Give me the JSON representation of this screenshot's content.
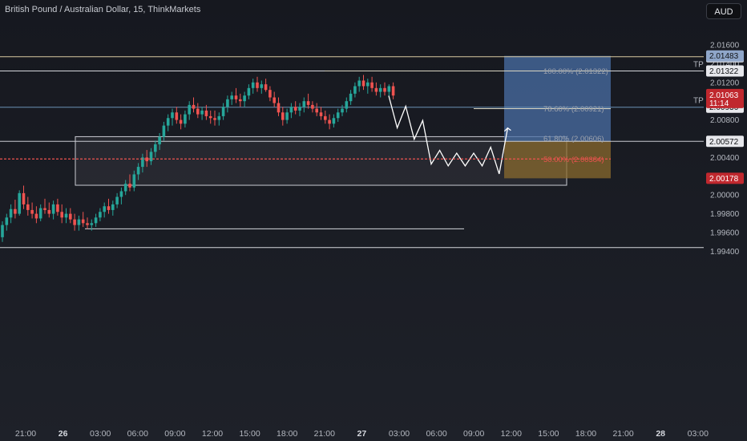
{
  "header": {
    "title": "British Pound / Australian Dollar, 15, ThinkMarkets",
    "currency_label": "AUD"
  },
  "colors": {
    "up": "#26a69a",
    "down": "#ef5350",
    "fib_line": "#d9d5c2",
    "target_zone": "#4a6fa5",
    "stop_zone": "#8a6a2e",
    "current_price_badge": "#c0282e"
  },
  "chart_data": {
    "type": "candlestick",
    "title": "British Pound / Australian Dollar, 15, ThinkMarkets",
    "y_axis": {
      "ticks": [
        "2.01600",
        "2.01400",
        "2.01200",
        "2.00800",
        "2.00400",
        "2.00000",
        "1.99800",
        "1.99600",
        "1.99400"
      ],
      "ylim": [
        1.9938,
        2.0168
      ]
    },
    "x_axis": {
      "ticks": [
        {
          "label": "21:00",
          "bold": false
        },
        {
          "label": "26",
          "bold": true
        },
        {
          "label": "03:00",
          "bold": false
        },
        {
          "label": "06:00",
          "bold": false
        },
        {
          "label": "09:00",
          "bold": false
        },
        {
          "label": "12:00",
          "bold": false
        },
        {
          "label": "15:00",
          "bold": false
        },
        {
          "label": "18:00",
          "bold": false
        },
        {
          "label": "21:00",
          "bold": false
        },
        {
          "label": "27",
          "bold": true
        },
        {
          "label": "03:00",
          "bold": false
        },
        {
          "label": "06:00",
          "bold": false
        },
        {
          "label": "09:00",
          "bold": false
        },
        {
          "label": "12:00",
          "bold": false
        },
        {
          "label": "15:00",
          "bold": false
        },
        {
          "label": "18:00",
          "bold": false
        },
        {
          "label": "21:00",
          "bold": false
        },
        {
          "label": "28",
          "bold": true
        },
        {
          "label": "03:00",
          "bold": false
        }
      ]
    },
    "price_levels": [
      {
        "label": "2.01474",
        "value": 2.01474
      },
      {
        "label": "2.01322",
        "value": 2.01322,
        "tag": "TP"
      },
      {
        "label": "2.00936",
        "value": 2.00936,
        "tag": "TP"
      },
      {
        "label": "2.00572",
        "value": 2.00572
      },
      {
        "label": "1.99640",
        "value": 1.9964
      },
      {
        "label": "1.99440",
        "value": 1.9944
      }
    ],
    "badges": [
      {
        "label": "2.01483",
        "value": 2.01483
      },
      {
        "label": "2.01063",
        "sub": "11:14",
        "value": 2.01063
      },
      {
        "label": "2.00178",
        "value": 2.00178
      }
    ],
    "fibonacci": [
      {
        "label": "100.00% (2.01322)",
        "value": 2.01322
      },
      {
        "label": "78.60% (2.00921)",
        "value": 2.00921
      },
      {
        "label": "61.80% (2.00606)",
        "value": 2.00606
      },
      {
        "label": "50.00% (2.00384)",
        "value": 2.00384
      }
    ],
    "demand_zone": {
      "top": 2.00622,
      "bottom": 2.00104
    },
    "position": {
      "entry": 2.00572,
      "target": 2.01483,
      "stop": 2.00178
    },
    "projection_path": [
      2.01058,
      2.00716,
      2.00946,
      2.00594,
      2.00794,
      2.0033,
      2.00476,
      2.0031,
      2.00446,
      2.0031,
      2.00446,
      2.0031,
      2.0051,
      2.00225,
      2.00714
    ],
    "candles_ohlc": [
      [
        1.9955,
        1.9972,
        1.995,
        1.9968
      ],
      [
        1.9968,
        1.998,
        1.9962,
        1.9976
      ],
      [
        1.9976,
        1.999,
        1.997,
        1.9985
      ],
      [
        1.9985,
        1.9995,
        1.9975,
        1.998
      ],
      [
        1.998,
        2.0005,
        1.9978,
        2.0002
      ],
      [
        2.0002,
        2.001,
        1.9985,
        1.999
      ],
      [
        1.999,
        1.9998,
        1.9978,
        1.9984
      ],
      [
        1.9984,
        1.9992,
        1.9975,
        1.998
      ],
      [
        1.998,
        1.9988,
        1.997,
        1.9975
      ],
      [
        1.9975,
        1.999,
        1.9972,
        1.9986
      ],
      [
        1.9986,
        1.9996,
        1.998,
        1.9984
      ],
      [
        1.9984,
        1.9992,
        1.9976,
        1.998
      ],
      [
        1.998,
        1.9994,
        1.9974,
        1.999
      ],
      [
        1.999,
        1.9996,
        1.9978,
        1.9982
      ],
      [
        1.9982,
        1.999,
        1.997,
        1.9976
      ],
      [
        1.9976,
        1.9986,
        1.997,
        1.998
      ],
      [
        1.998,
        1.9986,
        1.997,
        1.9974
      ],
      [
        1.9974,
        1.998,
        1.9962,
        1.9968
      ],
      [
        1.9968,
        1.9978,
        1.9962,
        1.9974
      ],
      [
        1.9974,
        1.9982,
        1.9966,
        1.997
      ],
      [
        1.997,
        1.9976,
        1.9964,
        1.9968
      ],
      [
        1.9968,
        1.9974,
        1.9962,
        1.997
      ],
      [
        1.997,
        1.998,
        1.9966,
        1.9976
      ],
      [
        1.9976,
        1.9986,
        1.9972,
        1.9982
      ],
      [
        1.9982,
        1.9992,
        1.9976,
        1.9988
      ],
      [
        1.9988,
        1.9996,
        1.998,
        1.9984
      ],
      [
        1.9984,
        1.9994,
        1.9978,
        1.999
      ],
      [
        1.999,
        2.0002,
        1.9986,
        1.9998
      ],
      [
        1.9998,
        2.0008,
        1.999,
        2.0004
      ],
      [
        2.0004,
        2.0016,
        2.0,
        2.0012
      ],
      [
        2.0012,
        2.0022,
        2.0004,
        2.0008
      ],
      [
        2.0008,
        2.0026,
        2.0004,
        2.0022
      ],
      [
        2.0022,
        2.0034,
        2.0016,
        2.003
      ],
      [
        2.003,
        2.0044,
        2.0024,
        2.004
      ],
      [
        2.004,
        2.0048,
        2.003,
        2.0036
      ],
      [
        2.0036,
        2.005,
        2.0032,
        2.0046
      ],
      [
        2.0046,
        2.0058,
        2.004,
        2.0054
      ],
      [
        2.0054,
        2.0066,
        2.0048,
        2.0062
      ],
      [
        2.0062,
        2.0078,
        2.0058,
        2.0074
      ],
      [
        2.0074,
        2.0086,
        2.0068,
        2.0082
      ],
      [
        2.0082,
        2.0092,
        2.0074,
        2.0088
      ],
      [
        2.0088,
        2.0094,
        2.0076,
        2.008
      ],
      [
        2.008,
        2.0086,
        2.007,
        2.0076
      ],
      [
        2.0076,
        2.009,
        2.0072,
        2.0086
      ],
      [
        2.0086,
        2.01,
        2.008,
        2.0096
      ],
      [
        2.0096,
        2.0104,
        2.0088,
        2.0092
      ],
      [
        2.0092,
        2.0098,
        2.0082,
        2.0086
      ],
      [
        2.0086,
        2.0094,
        2.008,
        2.009
      ],
      [
        2.009,
        2.0096,
        2.008,
        2.0084
      ],
      [
        2.0084,
        2.009,
        2.0076,
        2.0082
      ],
      [
        2.0082,
        2.009,
        2.0074,
        2.008
      ],
      [
        2.008,
        2.0088,
        2.0074,
        2.0084
      ],
      [
        2.0084,
        2.0098,
        2.008,
        2.0094
      ],
      [
        2.0094,
        2.0106,
        2.0088,
        2.0102
      ],
      [
        2.0102,
        2.011,
        2.0096,
        2.0106
      ],
      [
        2.0106,
        2.0114,
        2.0098,
        2.0102
      ],
      [
        2.0102,
        2.0108,
        2.0094,
        2.01
      ],
      [
        2.01,
        2.011,
        2.0094,
        2.0106
      ],
      [
        2.0106,
        2.0118,
        2.0102,
        2.0114
      ],
      [
        2.0114,
        2.0124,
        2.0108,
        2.012
      ],
      [
        2.012,
        2.0126,
        2.011,
        2.0114
      ],
      [
        2.0114,
        2.0122,
        2.0108,
        2.0118
      ],
      [
        2.0118,
        2.0124,
        2.011,
        2.0112
      ],
      [
        2.0112,
        2.0116,
        2.01,
        2.0104
      ],
      [
        2.0104,
        2.011,
        2.0094,
        2.0098
      ],
      [
        2.0098,
        2.0104,
        2.0084,
        2.0088
      ],
      [
        2.0088,
        2.0094,
        2.0074,
        2.008
      ],
      [
        2.008,
        2.0092,
        2.0076,
        2.0088
      ],
      [
        2.0088,
        2.0098,
        2.0082,
        2.0094
      ],
      [
        2.0094,
        2.01,
        2.0086,
        2.009
      ],
      [
        2.009,
        2.0098,
        2.0084,
        2.0094
      ],
      [
        2.0094,
        2.0104,
        2.0088,
        2.01
      ],
      [
        2.01,
        2.0108,
        2.0092,
        2.0096
      ],
      [
        2.0096,
        2.01,
        2.0088,
        2.0092
      ],
      [
        2.0092,
        2.0098,
        2.0084,
        2.0088
      ],
      [
        2.0088,
        2.0094,
        2.008,
        2.0084
      ],
      [
        2.0084,
        2.009,
        2.0076,
        2.008
      ],
      [
        2.008,
        2.0086,
        2.007,
        2.0076
      ],
      [
        2.0076,
        2.0086,
        2.0072,
        2.0082
      ],
      [
        2.0082,
        2.0092,
        2.0078,
        2.0088
      ],
      [
        2.0088,
        2.0096,
        2.0084,
        2.0092
      ],
      [
        2.0092,
        2.0104,
        2.0088,
        2.01
      ],
      [
        2.01,
        2.0112,
        2.0096,
        2.0108
      ],
      [
        2.0108,
        2.012,
        2.0104,
        2.0116
      ],
      [
        2.0116,
        2.0126,
        2.011,
        2.0122
      ],
      [
        2.0122,
        2.0128,
        2.0112,
        2.0116
      ],
      [
        2.0116,
        2.0124,
        2.0108,
        2.012
      ],
      [
        2.012,
        2.0126,
        2.011,
        2.0114
      ],
      [
        2.0114,
        2.012,
        2.0106,
        2.011
      ],
      [
        2.011,
        2.0118,
        2.0104,
        2.0114
      ],
      [
        2.0114,
        2.012,
        2.0106,
        2.011
      ],
      [
        2.011,
        2.0118,
        2.0104,
        2.0116
      ],
      [
        2.0116,
        2.012,
        2.0102,
        2.0106
      ]
    ]
  }
}
